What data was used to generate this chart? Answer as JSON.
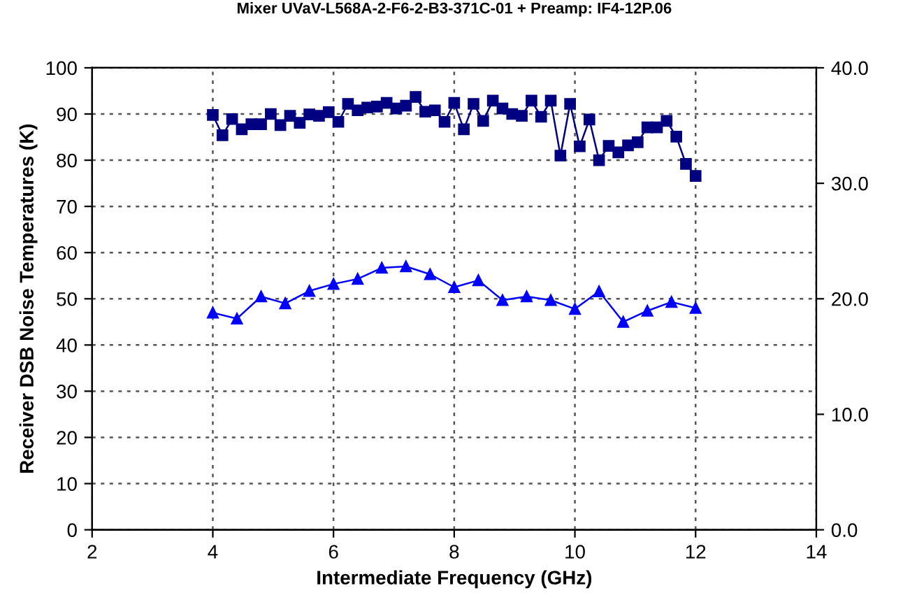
{
  "chart_data": {
    "type": "line",
    "title": "Mixer UVaV-L568A-2-F6-2-B3-371C-01 + Preamp: IF4-12P.06",
    "xlabel": "Intermediate Frequency (GHz)",
    "ylabel": "Receiver DSB Noise Temperatures (K)",
    "xlim": [
      2,
      14
    ],
    "xticks": [
      2,
      4,
      6,
      8,
      10,
      12,
      14
    ],
    "ylim": [
      0,
      100
    ],
    "yticks": [
      0,
      10,
      20,
      30,
      40,
      50,
      60,
      70,
      80,
      90,
      100
    ],
    "y2lim": [
      0,
      40
    ],
    "y2ticks": [
      {
        "value": 0,
        "label": "0.0"
      },
      {
        "value": 10,
        "label": "10.0"
      },
      {
        "value": 20,
        "label": "20.0"
      },
      {
        "value": 30,
        "label": "30.0"
      },
      {
        "value": 40,
        "label": "40.0"
      }
    ],
    "grid": true,
    "line_style": "solid",
    "series": [
      {
        "color": "#000080",
        "marker": "square",
        "x": [
          4.0,
          4.16,
          4.32,
          4.48,
          4.64,
          4.8,
          4.96,
          5.12,
          5.28,
          5.44,
          5.6,
          5.76,
          5.92,
          6.08,
          6.24,
          6.4,
          6.56,
          6.72,
          6.88,
          7.04,
          7.2,
          7.36,
          7.52,
          7.68,
          7.84,
          8.0,
          8.16,
          8.32,
          8.48,
          8.64,
          8.8,
          8.96,
          9.12,
          9.28,
          9.44,
          9.6,
          9.76,
          9.92,
          10.08,
          10.24,
          10.4,
          10.56,
          10.72,
          10.88,
          11.04,
          11.2,
          11.36,
          11.52,
          11.68,
          11.84,
          12.0
        ],
        "values": [
          89.8,
          85.4,
          88.9,
          86.7,
          87.8,
          87.8,
          90.0,
          87.6,
          89.6,
          88.1,
          89.9,
          89.6,
          90.4,
          88.3,
          92.2,
          90.8,
          91.4,
          91.6,
          92.4,
          91.2,
          91.8,
          93.7,
          90.5,
          90.8,
          88.3,
          92.4,
          86.7,
          92.2,
          88.5,
          92.9,
          91.2,
          90.0,
          89.6,
          92.9,
          89.4,
          92.9,
          81.0,
          92.2,
          83.0,
          88.8,
          80.0,
          83.1,
          81.7,
          83.2,
          83.9,
          87.1,
          87.1,
          88.5,
          85.1,
          79.2,
          76.6
        ]
      },
      {
        "color": "#0000ff",
        "marker": "triangle",
        "x": [
          4.0,
          4.4,
          4.8,
          5.2,
          5.6,
          6.0,
          6.4,
          6.8,
          7.2,
          7.6,
          8.0,
          8.4,
          8.8,
          9.2,
          9.6,
          10.0,
          10.4,
          10.8,
          11.2,
          11.6,
          12.0
        ],
        "values": [
          47.0,
          45.7,
          50.5,
          49.0,
          51.7,
          53.2,
          54.3,
          56.7,
          57.0,
          55.3,
          52.5,
          54.0,
          49.7,
          50.5,
          49.7,
          47.8,
          51.6,
          45.0,
          47.4,
          49.3,
          48.0
        ]
      }
    ]
  }
}
